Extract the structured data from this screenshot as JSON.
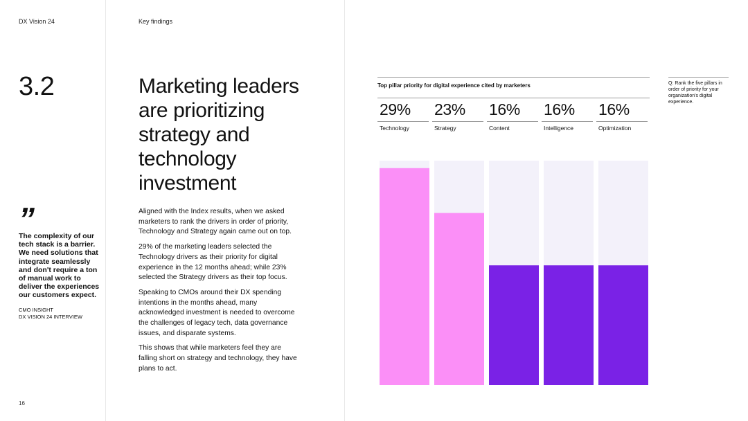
{
  "header": {
    "brand": "DX Vision 24",
    "section": "Key findings"
  },
  "section_number": "3.2",
  "headline": "Marketing leaders are prioritizing strategy and technology investment",
  "quote": {
    "mark": "”",
    "text": "The complexity of our tech stack is a barrier. We need solutions that integrate seamlessly and don't require a ton of manual work to deliver the experiences our customers expect.",
    "source_line1": "CMO Insight",
    "source_line2": "DX Vision 24 Interview"
  },
  "body_paragraphs": [
    "Aligned with the Index results, when we asked marketers to rank the drivers in order of priority, Technology and Strategy again came out on top.",
    "29% of the marketing leaders selected the Technology drivers as their priority for digital experience in the 12 months ahead; while 23% selected the Strategy drivers as their top focus.",
    "Speaking to CMOs around their DX spending intentions in the months ahead, many acknowledged investment is needed to overcome the challenges of legacy tech, data governance issues, and disparate systems.",
    "This shows that while marketers feel they are falling short on strategy and technology, they have plans to act."
  ],
  "question_note": "Q: Rank the five pillars in order of priority for your organization's digital experience.",
  "page_number": "16",
  "chart_data": {
    "type": "bar",
    "title": "Top pillar priority for digital experience cited by marketers",
    "categories": [
      "Technology",
      "Strategy",
      "Content",
      "Intelligence",
      "Optimization"
    ],
    "values": [
      29,
      23,
      16,
      16,
      16
    ],
    "value_labels": [
      "29%",
      "23%",
      "16%",
      "16%",
      "16%"
    ],
    "unit": "%",
    "ylim": [
      0,
      30
    ],
    "grid": false,
    "colors": {
      "highlight": "#FB8FF7",
      "standard": "#7A22E6",
      "track": "#F3F1FA",
      "highlighted_categories": [
        "Technology",
        "Strategy"
      ]
    }
  }
}
